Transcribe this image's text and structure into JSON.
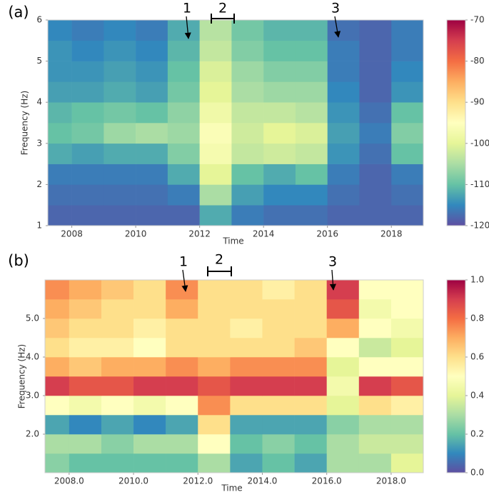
{
  "chart_data": [
    {
      "type": "heatmap",
      "panel_label": "(a)",
      "x_label": "Time",
      "y_label": "Frequency (Hz)",
      "colormap": "Spectral_r",
      "x": [
        2007.25,
        2008,
        2009,
        2010,
        2011,
        2012,
        2013,
        2014,
        2015,
        2016,
        2017,
        2018,
        2019
      ],
      "y": [
        1,
        1.5,
        2,
        2.5,
        3,
        3.5,
        4,
        4.5,
        5,
        5.5,
        6
      ],
      "z": [
        [
          -118,
          -118,
          -118,
          -118,
          -118,
          -112,
          -116,
          -117,
          -117,
          -118,
          -118,
          -118
        ],
        [
          -117,
          -117,
          -117,
          -117,
          -116,
          -105,
          -113,
          -115,
          -115,
          -117,
          -118,
          -117
        ],
        [
          -116,
          -116,
          -116,
          -116,
          -112,
          -100,
          -110,
          -112,
          -110,
          -116,
          -118,
          -116
        ],
        [
          -112,
          -113,
          -112,
          -112,
          -108,
          -97,
          -103,
          -102,
          -103,
          -114,
          -117,
          -110
        ],
        [
          -110,
          -109,
          -106,
          -105,
          -106,
          -96,
          -102,
          -100,
          -101,
          -113,
          -116,
          -108
        ],
        [
          -111,
          -110,
          -109,
          -110,
          -107,
          -98,
          -103,
          -103,
          -104,
          -114,
          -117,
          -110
        ],
        [
          -113,
          -113,
          -112,
          -113,
          -109,
          -100,
          -105,
          -106,
          -106,
          -115,
          -118,
          -114
        ],
        [
          -114,
          -114,
          -113,
          -114,
          -110,
          -101,
          -106,
          -108,
          -108,
          -116,
          -118,
          -115
        ],
        [
          -114,
          -115,
          -114,
          -115,
          -111,
          -103,
          -108,
          -110,
          -110,
          -116,
          -118,
          -116
        ],
        [
          -115,
          -116,
          -115,
          -116,
          -112,
          -104,
          -109,
          -111,
          -111,
          -117,
          -118,
          -116
        ]
      ],
      "xlim": [
        2007.25,
        2019
      ],
      "xticks": [
        2008,
        2010,
        2012,
        2014,
        2016,
        2018
      ],
      "ylim": [
        1,
        6
      ],
      "yticks": [
        1,
        2,
        3,
        4,
        5,
        6
      ],
      "clim": [
        -120,
        -70
      ],
      "cticks": [
        -120,
        -110,
        -100,
        -90,
        -80,
        -70
      ],
      "annotations": [
        "1",
        "2",
        "3"
      ]
    },
    {
      "type": "heatmap",
      "panel_label": "(b)",
      "x_label": "Time",
      "y_label": "Frequency (Hz)",
      "colormap": "Spectral_r",
      "x": [
        2007.25,
        2008,
        2009,
        2010,
        2011,
        2012,
        2013,
        2014,
        2015,
        2016,
        2017,
        2018,
        2019
      ],
      "y": [
        1,
        1.5,
        2,
        2.5,
        3,
        3.5,
        4,
        4.5,
        5,
        5.5,
        6
      ],
      "z": [
        [
          0.25,
          0.2,
          0.2,
          0.2,
          0.2,
          0.3,
          0.15,
          0.2,
          0.15,
          0.3,
          0.3,
          0.4
        ],
        [
          0.3,
          0.3,
          0.25,
          0.3,
          0.3,
          0.5,
          0.2,
          0.25,
          0.2,
          0.3,
          0.35,
          0.35
        ],
        [
          0.15,
          0.1,
          0.15,
          0.1,
          0.15,
          0.6,
          0.15,
          0.15,
          0.15,
          0.25,
          0.3,
          0.3
        ],
        [
          0.5,
          0.45,
          0.5,
          0.45,
          0.5,
          0.75,
          0.6,
          0.6,
          0.6,
          0.4,
          0.6,
          0.55
        ],
        [
          0.9,
          0.85,
          0.85,
          0.9,
          0.9,
          0.85,
          0.9,
          0.9,
          0.9,
          0.45,
          0.9,
          0.85
        ],
        [
          0.7,
          0.65,
          0.7,
          0.7,
          0.75,
          0.7,
          0.75,
          0.75,
          0.75,
          0.4,
          0.5,
          0.5
        ],
        [
          0.6,
          0.55,
          0.55,
          0.5,
          0.6,
          0.6,
          0.6,
          0.6,
          0.65,
          0.5,
          0.35,
          0.4
        ],
        [
          0.65,
          0.6,
          0.6,
          0.55,
          0.6,
          0.6,
          0.55,
          0.6,
          0.6,
          0.7,
          0.5,
          0.45
        ],
        [
          0.7,
          0.65,
          0.6,
          0.6,
          0.7,
          0.6,
          0.6,
          0.6,
          0.6,
          0.85,
          0.45,
          0.5
        ],
        [
          0.75,
          0.7,
          0.65,
          0.6,
          0.75,
          0.6,
          0.6,
          0.55,
          0.6,
          0.9,
          0.5,
          0.5
        ]
      ],
      "xlim": [
        2007.25,
        2019
      ],
      "xticks": [
        2008,
        2010,
        2012,
        2014,
        2016,
        2018
      ],
      "ylim": [
        1,
        6
      ],
      "yticks": [
        2,
        3,
        4,
        5
      ],
      "clim": [
        0,
        1
      ],
      "cticks": [
        0.0,
        0.2,
        0.4,
        0.6,
        0.8,
        1.0
      ],
      "annotations": [
        "1",
        "2",
        "3"
      ]
    }
  ]
}
